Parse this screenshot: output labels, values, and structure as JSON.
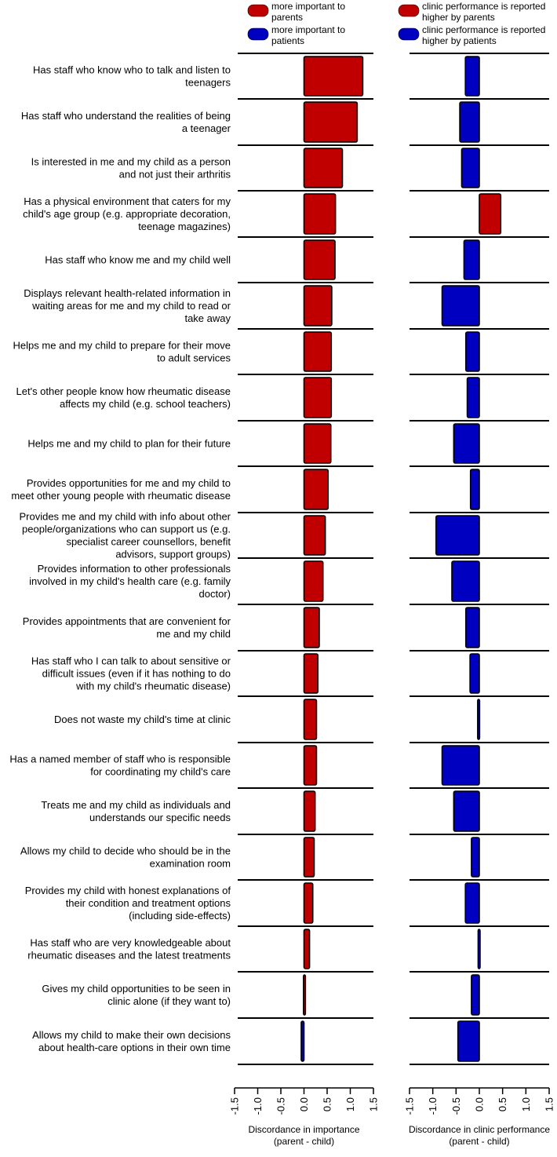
{
  "legend": {
    "left": [
      {
        "text1": "more important to",
        "text2": "parents",
        "color": "#c00000"
      },
      {
        "text1": "more important to",
        "text2": "patients",
        "color": "#0000c0"
      }
    ],
    "right": [
      {
        "text1": "clinic performance is reported",
        "text2": "higher by parents",
        "color": "#c00000"
      },
      {
        "text1": "clinic performance is reported",
        "text2": "higher by patients",
        "color": "#0000c0"
      }
    ]
  },
  "colors": {
    "positive": "#c00000",
    "negative": "#0000c0",
    "outline": "#000000"
  },
  "chart_data": [
    {
      "type": "bar",
      "orientation": "horizontal",
      "xlabel": [
        "Discordance in importance",
        "(parent - child)"
      ],
      "xlim": [
        -1.5,
        1.5
      ],
      "ticks": [
        "-1.5",
        "-1.0",
        "-0.5",
        "0.0",
        "0.5",
        "1.0",
        "1.5"
      ],
      "grid": false,
      "values": [
        1.27,
        1.15,
        0.83,
        0.68,
        0.67,
        0.6,
        0.59,
        0.59,
        0.58,
        0.52,
        0.46,
        0.41,
        0.33,
        0.3,
        0.27,
        0.27,
        0.24,
        0.22,
        0.19,
        0.12,
        0.02,
        -0.06
      ]
    },
    {
      "type": "bar",
      "orientation": "horizontal",
      "xlabel": [
        "Discordance in clinic performance",
        "(parent - child)"
      ],
      "xlim": [
        -1.5,
        1.5
      ],
      "ticks": [
        "-1.5",
        "-1.0",
        "-0.5",
        "0.0",
        "0.5",
        "1.0",
        "1.5"
      ],
      "grid": false,
      "values": [
        -0.3,
        -0.42,
        -0.38,
        0.46,
        -0.33,
        -0.8,
        -0.29,
        -0.26,
        -0.55,
        -0.19,
        -0.93,
        -0.59,
        -0.29,
        -0.2,
        -0.03,
        -0.8,
        -0.55,
        -0.17,
        -0.3,
        -0.01,
        -0.17,
        -0.46
      ]
    }
  ],
  "categories": [
    [
      "Has staff who know who to talk and listen to",
      "teenagers"
    ],
    [
      "Has staff who understand the realities of being",
      "a teenager"
    ],
    [
      "Is interested in me and my child as a person",
      "and not just their arthritis"
    ],
    [
      "Has a physical environment that caters for my",
      "child's age group (e.g. appropriate decoration,",
      "teenage magazines)"
    ],
    [
      "Has staff who know me and my child well"
    ],
    [
      "Displays relevant health-related information in",
      "waiting areas for me and my child to read or",
      "take away"
    ],
    [
      "Helps me and my child to prepare for their move",
      "to adult services"
    ],
    [
      "Let's other people know how rheumatic disease",
      "affects my child (e.g. school teachers)"
    ],
    [
      "Helps me and my child to plan for their future"
    ],
    [
      "Provides opportunities for me and my child to",
      "meet other young people with rheumatic disease"
    ],
    [
      "Provides me and my child with info about other",
      "people/organizations who can support us (e.g.",
      "specialist career counsellors, benefit",
      "advisors, support groups)"
    ],
    [
      "Provides information to other professionals",
      "involved in my child's health care (e.g. family",
      "doctor)"
    ],
    [
      "Provides appointments that are convenient for",
      "me and my child"
    ],
    [
      "Has staff who I can talk to about sensitive or",
      "difficult issues (even if it has nothing to do",
      "with my child's rheumatic disease)"
    ],
    [
      "Does not waste my child's time at clinic"
    ],
    [
      "Has a named member of staff who is responsible",
      "for coordinating my child's care"
    ],
    [
      "Treats me and my child as individuals and",
      "understands our specific needs"
    ],
    [
      "Allows my child to decide who should be in the",
      "examination room"
    ],
    [
      "Provides my child with honest explanations of",
      "their condition and treatment options",
      "(including side-effects)"
    ],
    [
      "Has staff who are very knowledgeable about",
      "rheumatic diseases and the latest treatments"
    ],
    [
      "Gives my child opportunities to be seen in",
      "clinic alone (if they want to)"
    ],
    [
      "Allows my child to make their own decisions",
      "about health-care options in their own time"
    ]
  ]
}
